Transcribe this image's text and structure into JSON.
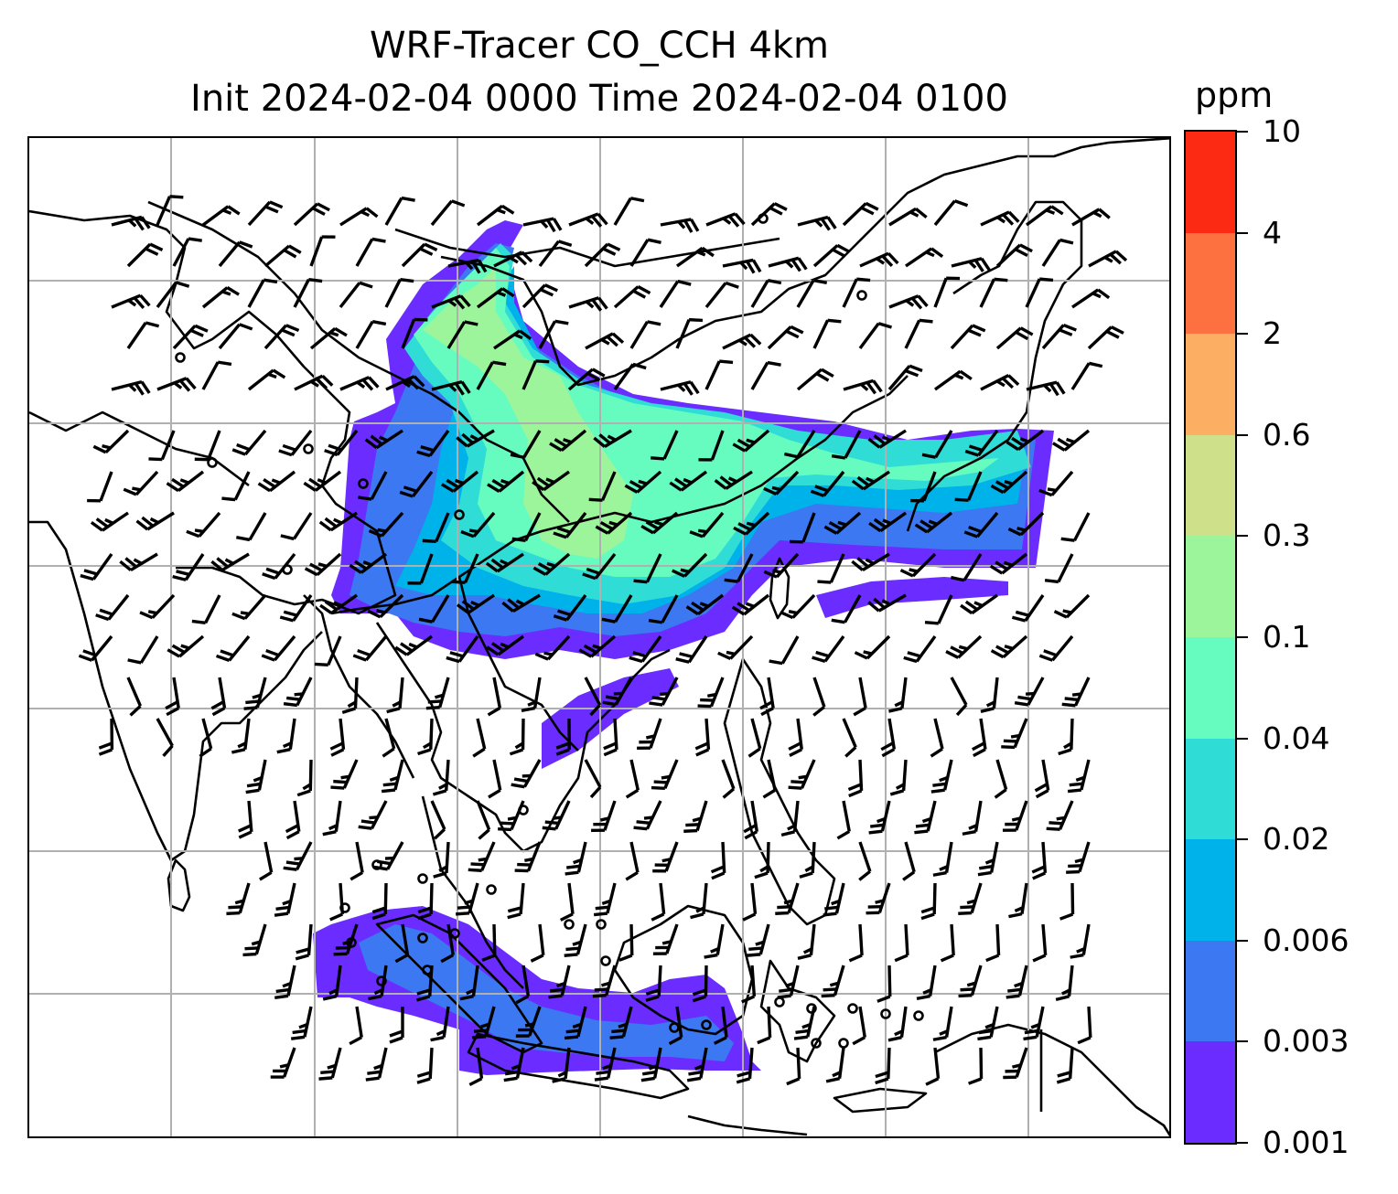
{
  "title_line1": "WRF-Tracer CO_CCH 4km",
  "title_line2": "Init 2024-02-04 0000 Time 2024-02-04 0100",
  "colorbar": {
    "unit": "ppm",
    "levels": [
      "0.001",
      "0.003",
      "0.006",
      "0.02",
      "0.04",
      "0.1",
      "0.3",
      "0.6",
      "2",
      "4",
      "10"
    ],
    "colors": [
      "#6a2cff",
      "#3b78f2",
      "#00b2ea",
      "#2fdcd6",
      "#66fcc0",
      "#9cf59a",
      "#cfe08a",
      "#fcae62",
      "#fd7040",
      "#fc2a12"
    ]
  },
  "map": {
    "coastline_color": "#000000",
    "grid_color": "#b0b0b0",
    "barb_color": "#000000"
  }
}
